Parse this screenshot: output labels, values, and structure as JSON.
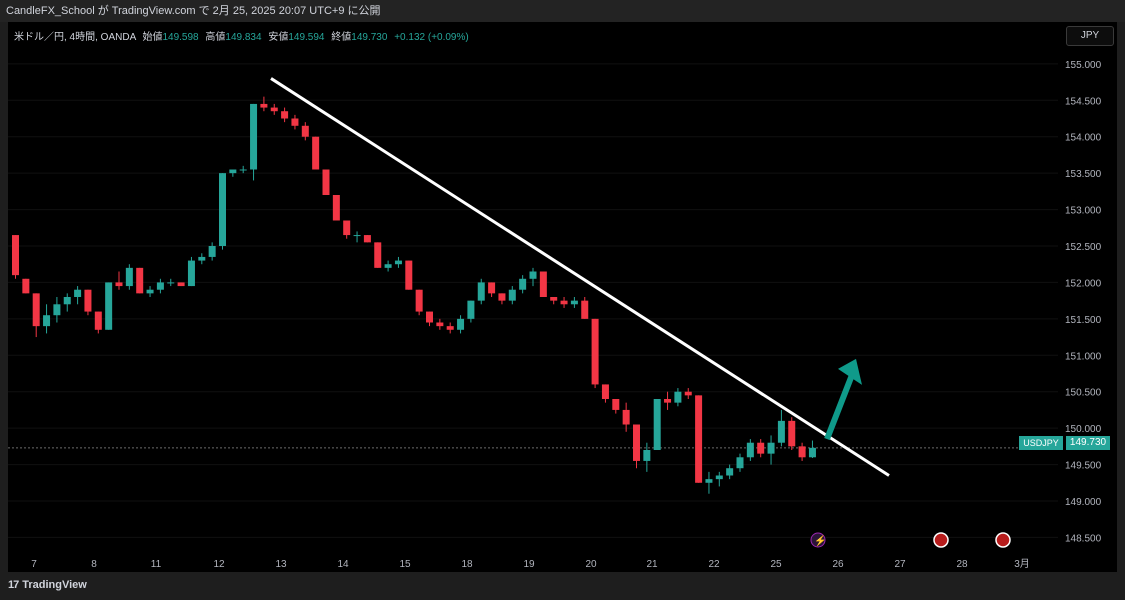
{
  "header": {
    "publish_text": "CandleFX_School が TradingView.com で 2月 25, 2025 20:07 UTC+9 に公開"
  },
  "legend": {
    "symbol": "米ドル／円, 4時間, OANDA",
    "open_label": "始値",
    "open": "149.598",
    "high_label": "高値",
    "high": "149.834",
    "low_label": "安値",
    "low": "149.594",
    "close_label": "終値",
    "close": "149.730",
    "change": "+0.132 (+0.09%)"
  },
  "currency_button": "JPY",
  "price_tag": {
    "symbol": "USDJPY",
    "value": "149.730"
  },
  "footer": {
    "brand": "TradingView"
  },
  "colors": {
    "up": "#26a69a",
    "down": "#f23645",
    "background": "#000000",
    "trendline": "#ffffff",
    "arrow": "#0f9a8a"
  },
  "chart_data": {
    "type": "candlestick",
    "y_ticks": [
      "155.000",
      "154.500",
      "154.000",
      "153.500",
      "153.000",
      "152.500",
      "152.000",
      "151.500",
      "151.000",
      "150.500",
      "150.000",
      "149.500",
      "149.000",
      "148.500"
    ],
    "ylim": [
      148.3,
      155.3
    ],
    "x_ticks": [
      "7",
      "8",
      "11",
      "12",
      "13",
      "14",
      "15",
      "18",
      "19",
      "20",
      "21",
      "22",
      "25",
      "26",
      "27",
      "28",
      "3月"
    ],
    "current_price": 149.73,
    "candles": [
      [
        152.65,
        152.65,
        152.05,
        152.1
      ],
      [
        152.05,
        152.05,
        151.85,
        151.85
      ],
      [
        151.85,
        151.85,
        151.25,
        151.4
      ],
      [
        151.4,
        151.7,
        151.3,
        151.55
      ],
      [
        151.55,
        151.8,
        151.45,
        151.7
      ],
      [
        151.7,
        151.85,
        151.6,
        151.8
      ],
      [
        151.8,
        151.95,
        151.7,
        151.9
      ],
      [
        151.9,
        151.9,
        151.55,
        151.6
      ],
      [
        151.6,
        151.6,
        151.3,
        151.35
      ],
      [
        151.35,
        152.0,
        151.35,
        152.0
      ],
      [
        152.0,
        152.15,
        151.9,
        151.95
      ],
      [
        151.95,
        152.25,
        151.9,
        152.2
      ],
      [
        152.2,
        152.2,
        151.85,
        151.85
      ],
      [
        151.85,
        151.95,
        151.8,
        151.9
      ],
      [
        151.9,
        152.05,
        151.85,
        152.0
      ],
      [
        152.0,
        152.05,
        151.95,
        152.0
      ],
      [
        152.0,
        152.0,
        151.95,
        151.95
      ],
      [
        151.95,
        152.35,
        151.95,
        152.3
      ],
      [
        152.3,
        152.4,
        152.25,
        152.35
      ],
      [
        152.35,
        152.55,
        152.3,
        152.5
      ],
      [
        152.5,
        153.5,
        152.45,
        153.5
      ],
      [
        153.5,
        153.55,
        153.45,
        153.55
      ],
      [
        153.55,
        153.6,
        153.5,
        153.55
      ],
      [
        153.55,
        154.45,
        153.4,
        154.45
      ],
      [
        154.45,
        154.55,
        154.35,
        154.4
      ],
      [
        154.4,
        154.45,
        154.3,
        154.35
      ],
      [
        154.35,
        154.4,
        154.2,
        154.25
      ],
      [
        154.25,
        154.3,
        154.1,
        154.15
      ],
      [
        154.15,
        154.2,
        153.95,
        154.0
      ],
      [
        154.0,
        154.0,
        153.55,
        153.55
      ],
      [
        153.55,
        153.55,
        153.2,
        153.2
      ],
      [
        153.2,
        153.2,
        152.85,
        152.85
      ],
      [
        152.85,
        152.85,
        152.6,
        152.65
      ],
      [
        152.65,
        152.7,
        152.55,
        152.65
      ],
      [
        152.65,
        152.65,
        152.55,
        152.55
      ],
      [
        152.55,
        152.55,
        152.2,
        152.2
      ],
      [
        152.2,
        152.3,
        152.15,
        152.25
      ],
      [
        152.25,
        152.35,
        152.2,
        152.3
      ],
      [
        152.3,
        152.3,
        151.9,
        151.9
      ],
      [
        151.9,
        151.9,
        151.55,
        151.6
      ],
      [
        151.6,
        151.6,
        151.4,
        151.45
      ],
      [
        151.45,
        151.5,
        151.35,
        151.4
      ],
      [
        151.4,
        151.45,
        151.3,
        151.35
      ],
      [
        151.35,
        151.55,
        151.3,
        151.5
      ],
      [
        151.5,
        151.75,
        151.45,
        151.75
      ],
      [
        151.75,
        152.05,
        151.7,
        152.0
      ],
      [
        152.0,
        152.0,
        151.8,
        151.85
      ],
      [
        151.85,
        151.85,
        151.7,
        151.75
      ],
      [
        151.75,
        151.95,
        151.7,
        151.9
      ],
      [
        151.9,
        152.1,
        151.85,
        152.05
      ],
      [
        152.05,
        152.2,
        151.95,
        152.15
      ],
      [
        152.15,
        152.15,
        151.8,
        151.8
      ],
      [
        151.8,
        151.8,
        151.7,
        151.75
      ],
      [
        151.75,
        151.8,
        151.65,
        151.7
      ],
      [
        151.7,
        151.8,
        151.65,
        151.75
      ],
      [
        151.75,
        151.8,
        151.5,
        151.5
      ],
      [
        151.5,
        151.5,
        150.55,
        150.6
      ],
      [
        150.6,
        150.6,
        150.35,
        150.4
      ],
      [
        150.4,
        150.4,
        150.2,
        150.25
      ],
      [
        150.25,
        150.35,
        149.95,
        150.05
      ],
      [
        150.05,
        150.05,
        149.45,
        149.55
      ],
      [
        149.55,
        149.8,
        149.4,
        149.7
      ],
      [
        149.7,
        150.4,
        149.7,
        150.4
      ],
      [
        150.4,
        150.5,
        150.25,
        150.35
      ],
      [
        150.35,
        150.55,
        150.3,
        150.5
      ],
      [
        150.5,
        150.55,
        150.4,
        150.45
      ],
      [
        150.45,
        150.45,
        149.25,
        149.25
      ],
      [
        149.25,
        149.4,
        149.1,
        149.3
      ],
      [
        149.3,
        149.4,
        149.2,
        149.35
      ],
      [
        149.35,
        149.5,
        149.3,
        149.45
      ],
      [
        149.45,
        149.65,
        149.4,
        149.6
      ],
      [
        149.6,
        149.85,
        149.55,
        149.8
      ],
      [
        149.8,
        149.85,
        149.6,
        149.65
      ],
      [
        149.65,
        149.9,
        149.5,
        149.8
      ],
      [
        149.8,
        150.25,
        149.75,
        150.1
      ],
      [
        150.1,
        150.15,
        149.7,
        149.75
      ],
      [
        149.75,
        149.8,
        149.55,
        149.6
      ],
      [
        149.6,
        149.83,
        149.59,
        149.73
      ]
    ],
    "annotations": [
      {
        "type": "trendline",
        "from": {
          "x": "13",
          "y": 154.8
        },
        "to": {
          "x": "26",
          "y": 149.35
        }
      },
      {
        "type": "arrow",
        "from": {
          "x": "26",
          "y": 149.85
        },
        "to": {
          "x": "26",
          "y": 150.95
        },
        "direction": "up-right"
      }
    ]
  }
}
